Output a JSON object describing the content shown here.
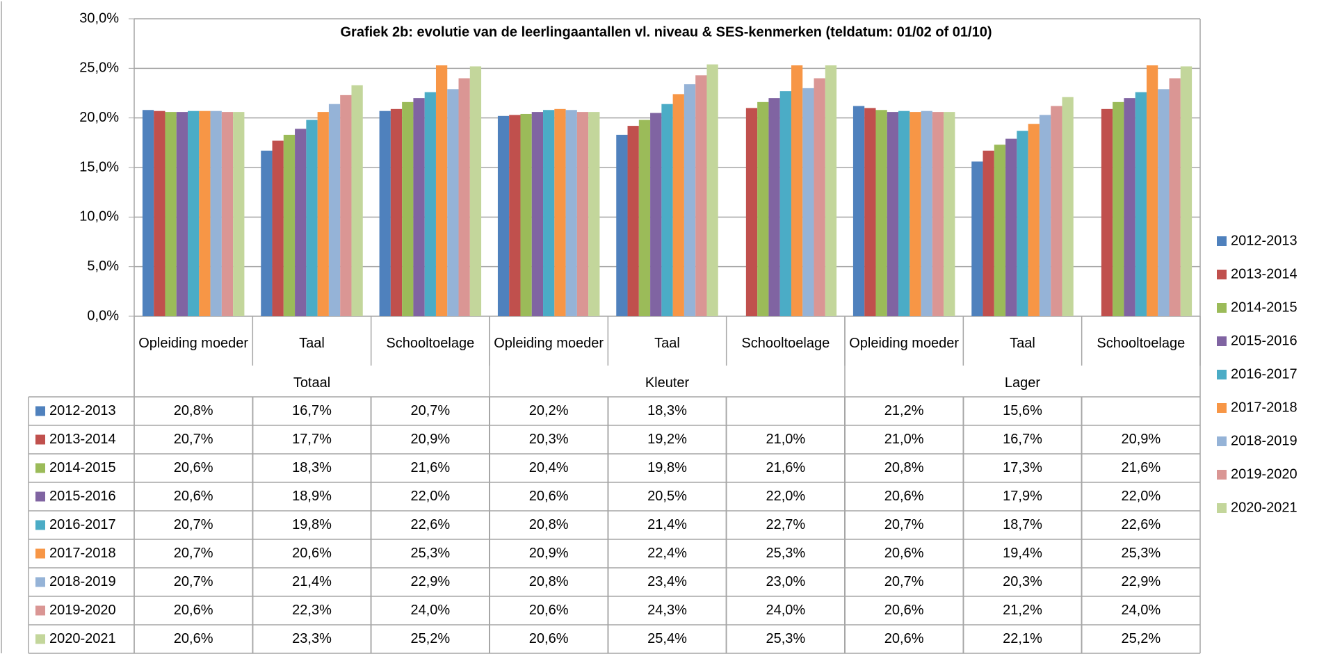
{
  "chart_data": {
    "type": "bar",
    "title": "Grafiek 2b: evolutie van de leerlingaantallen vl. niveau & SES-kenmerken (teldatum: 01/02 of 01/10)",
    "categories": [
      "Opleiding moeder",
      "Taal",
      "Schooltoelage",
      "Opleiding moeder",
      "Taal",
      "Schooltoelage",
      "Opleiding moeder",
      "Taal",
      "Schooltoelage"
    ],
    "groups": [
      "Totaal",
      "Kleuter",
      "Lager"
    ],
    "ylim": [
      0,
      30
    ],
    "yticks": [
      {
        "value": 0,
        "label": "0,0%"
      },
      {
        "value": 5,
        "label": "5,0%"
      },
      {
        "value": 10,
        "label": "10,0%"
      },
      {
        "value": 15,
        "label": "15,0%"
      },
      {
        "value": 20,
        "label": "20,0%"
      },
      {
        "value": 25,
        "label": "25,0%"
      },
      {
        "value": 30,
        "label": "30,0%"
      }
    ],
    "grid": true,
    "legend": "right",
    "series": [
      {
        "name": "2012-2013",
        "color": "#4f81bd",
        "values": [
          20.8,
          16.7,
          20.7,
          20.2,
          18.3,
          null,
          21.2,
          15.6,
          null
        ],
        "value_labels": [
          "20,8%",
          "16,7%",
          "20,7%",
          "20,2%",
          "18,3%",
          null,
          "21,2%",
          "15,6%",
          null
        ]
      },
      {
        "name": "2013-2014",
        "color": "#c0504d",
        "values": [
          20.7,
          17.7,
          20.9,
          20.3,
          19.2,
          21.0,
          21.0,
          16.7,
          20.9
        ],
        "value_labels": [
          "20,7%",
          "17,7%",
          "20,9%",
          "20,3%",
          "19,2%",
          "21,0%",
          "21,0%",
          "16,7%",
          "20,9%"
        ]
      },
      {
        "name": "2014-2015",
        "color": "#9bbb59",
        "values": [
          20.6,
          18.3,
          21.6,
          20.4,
          19.8,
          21.6,
          20.8,
          17.3,
          21.6
        ],
        "value_labels": [
          "20,6%",
          "18,3%",
          "21,6%",
          "20,4%",
          "19,8%",
          "21,6%",
          "20,8%",
          "17,3%",
          "21,6%"
        ]
      },
      {
        "name": "2015-2016",
        "color": "#8064a2",
        "values": [
          20.6,
          18.9,
          22.0,
          20.6,
          20.5,
          22.0,
          20.6,
          17.9,
          22.0
        ],
        "value_labels": [
          "20,6%",
          "18,9%",
          "22,0%",
          "20,6%",
          "20,5%",
          "22,0%",
          "20,6%",
          "17,9%",
          "22,0%"
        ]
      },
      {
        "name": "2016-2017",
        "color": "#4bacc6",
        "values": [
          20.7,
          19.8,
          22.6,
          20.8,
          21.4,
          22.7,
          20.7,
          18.7,
          22.6
        ],
        "value_labels": [
          "20,7%",
          "19,8%",
          "22,6%",
          "20,8%",
          "21,4%",
          "22,7%",
          "20,7%",
          "18,7%",
          "22,6%"
        ]
      },
      {
        "name": "2017-2018",
        "color": "#f79646",
        "values": [
          20.7,
          20.6,
          25.3,
          20.9,
          22.4,
          25.3,
          20.6,
          19.4,
          25.3
        ],
        "value_labels": [
          "20,7%",
          "20,6%",
          "25,3%",
          "20,9%",
          "22,4%",
          "25,3%",
          "20,6%",
          "19,4%",
          "25,3%"
        ]
      },
      {
        "name": "2018-2019",
        "color": "#95b3d7",
        "values": [
          20.7,
          21.4,
          22.9,
          20.8,
          23.4,
          23.0,
          20.7,
          20.3,
          22.9
        ],
        "value_labels": [
          "20,7%",
          "21,4%",
          "22,9%",
          "20,8%",
          "23,4%",
          "23,0%",
          "20,7%",
          "20,3%",
          "22,9%"
        ]
      },
      {
        "name": "2019-2020",
        "color": "#da9694",
        "values": [
          20.6,
          22.3,
          24.0,
          20.6,
          24.3,
          24.0,
          20.6,
          21.2,
          24.0
        ],
        "value_labels": [
          "20,6%",
          "22,3%",
          "24,0%",
          "20,6%",
          "24,3%",
          "24,0%",
          "20,6%",
          "21,2%",
          "24,0%"
        ]
      },
      {
        "name": "2020-2021",
        "color": "#c3d69b",
        "values": [
          20.6,
          23.3,
          25.2,
          20.6,
          25.4,
          25.3,
          20.6,
          22.1,
          25.2
        ],
        "value_labels": [
          "20,6%",
          "23,3%",
          "25,2%",
          "20,6%",
          "25,4%",
          "25,3%",
          "20,6%",
          "22,1%",
          "25,2%"
        ]
      }
    ]
  }
}
